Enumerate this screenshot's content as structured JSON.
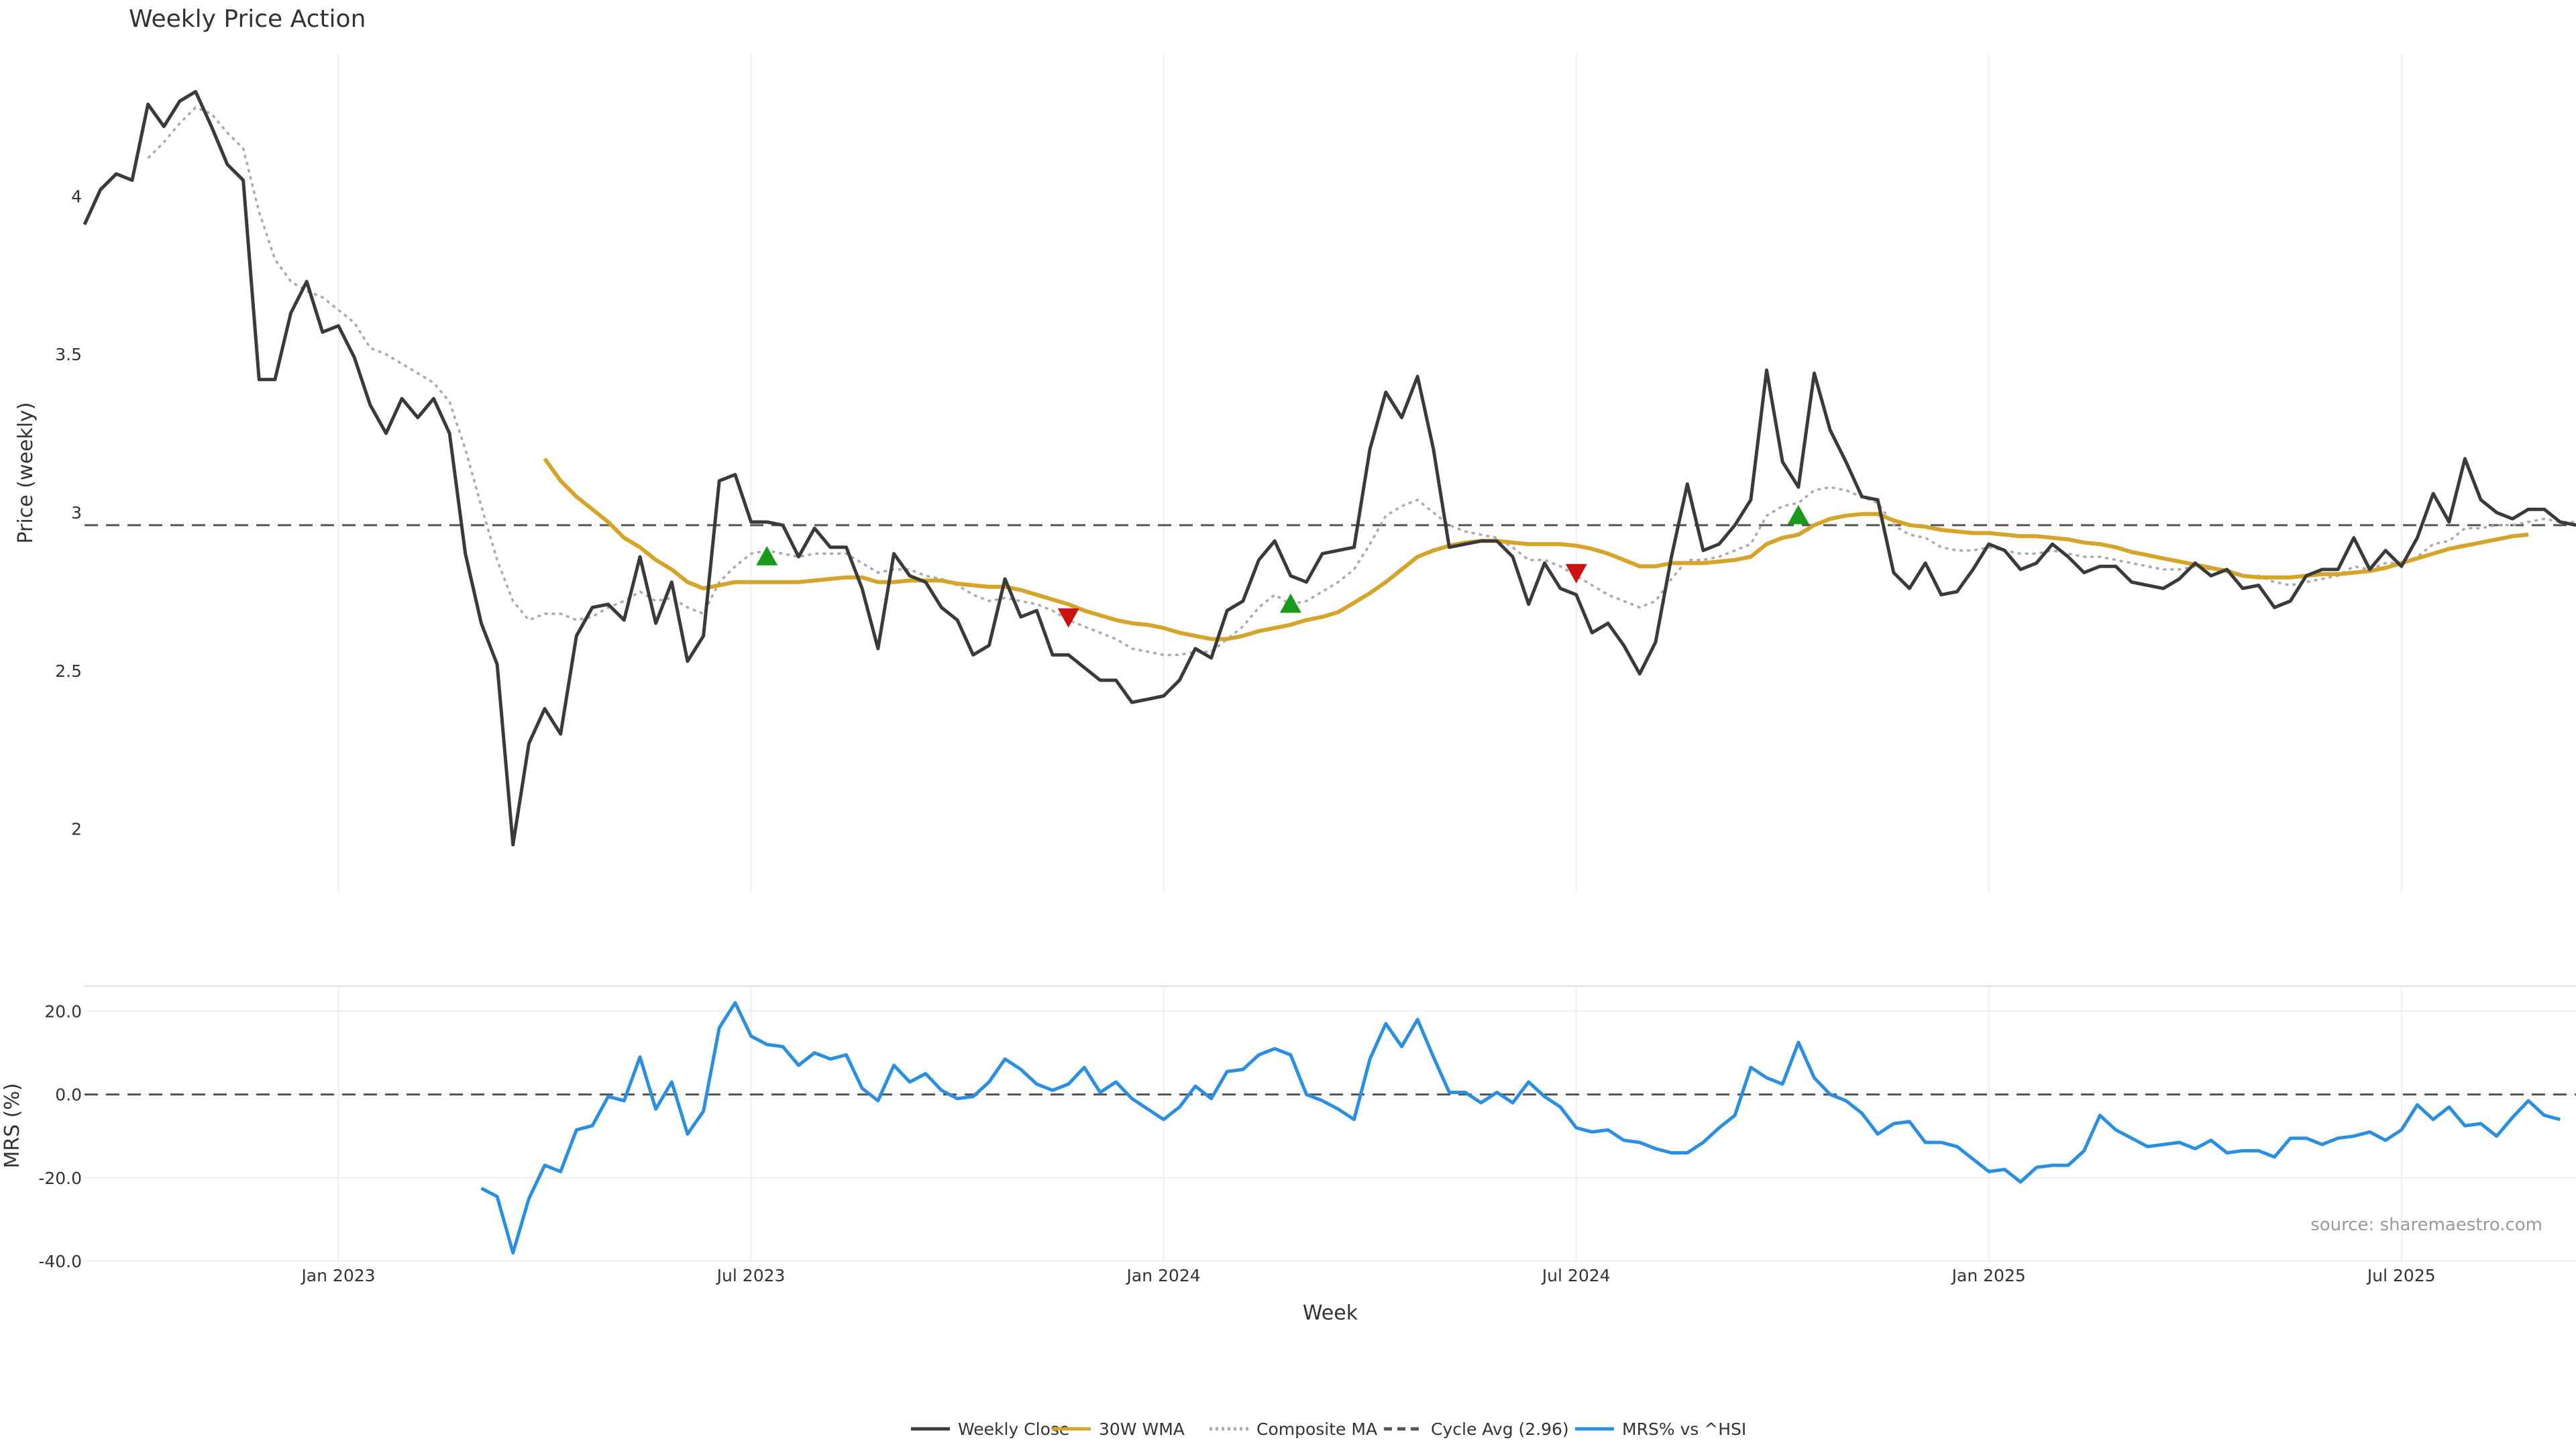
{
  "colors": {
    "close": "#3a3a3a",
    "wma": "#d4a52a",
    "composite": "#aaaaaa",
    "cycle": "#555555",
    "mrs": "#2a8fe0",
    "zero": "#555555",
    "grid": "#eeeeee",
    "buy": "#1a9a1a",
    "sell": "#cc1111"
  },
  "chart_data": [
    {
      "type": "line",
      "title": "Weekly Price Action",
      "ylabel": "Price (weekly)",
      "xlabel": "",
      "start_date": "2022-09-12",
      "ylim": [
        1.8,
        4.45
      ],
      "yticks": [
        2,
        2.5,
        3,
        3.5,
        4
      ],
      "ytick_labels": [
        "2",
        "2.5",
        "3",
        "3.5",
        "4"
      ],
      "cycle_avg": 2.96,
      "series": [
        {
          "name": "Weekly Close",
          "values": [
            3.91,
            4.02,
            4.07,
            4.05,
            4.29,
            4.22,
            4.3,
            4.33,
            4.22,
            4.1,
            4.05,
            3.42,
            3.42,
            3.63,
            3.73,
            3.57,
            3.59,
            3.49,
            3.34,
            3.25,
            3.36,
            3.3,
            3.36,
            3.25,
            2.87,
            2.65,
            2.52,
            1.95,
            2.27,
            2.38,
            2.3,
            2.61,
            2.7,
            2.71,
            2.66,
            2.86,
            2.65,
            2.78,
            2.53,
            2.61,
            3.1,
            3.12,
            2.97,
            2.97,
            2.96,
            2.86,
            2.95,
            2.89,
            2.89,
            2.76,
            2.57,
            2.87,
            2.8,
            2.78,
            2.7,
            2.66,
            2.55,
            2.58,
            2.79,
            2.67,
            2.69,
            2.55,
            2.55,
            2.51,
            2.47,
            2.47,
            2.4,
            2.41,
            2.42,
            2.47,
            2.57,
            2.54,
            2.69,
            2.72,
            2.85,
            2.91,
            2.8,
            2.78,
            2.87,
            2.88,
            2.89,
            3.2,
            3.38,
            3.3,
            3.43,
            3.2,
            2.89,
            2.9,
            2.91,
            2.91,
            2.86,
            2.71,
            2.84,
            2.76,
            2.74,
            2.62,
            2.65,
            2.58,
            2.49,
            2.59,
            2.86,
            3.09,
            2.88,
            2.9,
            2.96,
            3.04,
            3.45,
            3.16,
            3.08,
            3.44,
            3.26,
            3.16,
            3.05,
            3.04,
            2.81,
            2.76,
            2.84,
            2.74,
            2.75,
            2.82,
            2.9,
            2.88,
            2.82,
            2.84,
            2.9,
            2.86,
            2.81,
            2.83,
            2.83,
            2.78,
            2.77,
            2.76,
            2.79,
            2.84,
            2.8,
            2.82,
            2.76,
            2.77,
            2.7,
            2.72,
            2.8,
            2.82,
            2.82,
            2.92,
            2.82,
            2.88,
            2.83,
            2.92,
            3.06,
            2.97,
            3.17,
            3.04,
            3.0,
            2.98,
            3.01,
            3.01,
            2.97,
            2.96
          ]
        },
        {
          "name": "30W WMA",
          "values": [
            null,
            null,
            null,
            null,
            null,
            null,
            null,
            null,
            null,
            null,
            null,
            null,
            null,
            null,
            null,
            null,
            null,
            null,
            null,
            null,
            null,
            null,
            null,
            null,
            null,
            null,
            null,
            null,
            null,
            3.17,
            3.1,
            3.05,
            3.01,
            2.97,
            2.92,
            2.89,
            2.85,
            2.82,
            2.78,
            2.76,
            2.77,
            2.78,
            2.78,
            2.78,
            2.78,
            2.78,
            2.785,
            2.79,
            2.795,
            2.795,
            2.78,
            2.78,
            2.785,
            2.785,
            2.785,
            2.775,
            2.77,
            2.765,
            2.765,
            2.755,
            2.74,
            2.725,
            2.71,
            2.69,
            2.675,
            2.66,
            2.65,
            2.645,
            2.635,
            2.62,
            2.61,
            2.6,
            2.6,
            2.61,
            2.625,
            2.635,
            2.645,
            2.66,
            2.67,
            2.685,
            2.715,
            2.745,
            2.78,
            2.82,
            2.86,
            2.88,
            2.895,
            2.905,
            2.91,
            2.91,
            2.905,
            2.9,
            2.9,
            2.9,
            2.895,
            2.885,
            2.87,
            2.85,
            2.83,
            2.83,
            2.84,
            2.84,
            2.84,
            2.845,
            2.85,
            2.86,
            2.9,
            2.92,
            2.93,
            2.96,
            2.98,
            2.99,
            2.995,
            2.995,
            2.975,
            2.96,
            2.955,
            2.945,
            2.94,
            2.935,
            2.935,
            2.93,
            2.925,
            2.925,
            2.92,
            2.915,
            2.905,
            2.9,
            2.89,
            2.875,
            2.865,
            2.855,
            2.845,
            2.835,
            2.825,
            2.815,
            2.8,
            2.795,
            2.795,
            2.795,
            2.8,
            2.805,
            2.805,
            2.81,
            2.815,
            2.825,
            2.84,
            2.855,
            2.87,
            2.885,
            2.895,
            2.905,
            2.915,
            2.925,
            2.93
          ]
        },
        {
          "name": "Composite MA",
          "values": [
            null,
            null,
            null,
            null,
            4.12,
            4.17,
            4.23,
            4.28,
            4.26,
            4.2,
            4.15,
            3.95,
            3.8,
            3.73,
            3.7,
            3.68,
            3.64,
            3.6,
            3.52,
            3.5,
            3.47,
            3.44,
            3.41,
            3.35,
            3.2,
            3.02,
            2.85,
            2.72,
            2.66,
            2.68,
            2.68,
            2.66,
            2.67,
            2.7,
            2.72,
            2.75,
            2.72,
            2.73,
            2.7,
            2.68,
            2.78,
            2.83,
            2.87,
            2.88,
            2.87,
            2.86,
            2.87,
            2.87,
            2.87,
            2.84,
            2.81,
            2.82,
            2.82,
            2.8,
            2.79,
            2.77,
            2.74,
            2.72,
            2.73,
            2.72,
            2.71,
            2.69,
            2.66,
            2.64,
            2.62,
            2.6,
            2.57,
            2.56,
            2.55,
            2.55,
            2.56,
            2.56,
            2.6,
            2.64,
            2.7,
            2.74,
            2.71,
            2.72,
            2.75,
            2.78,
            2.82,
            2.9,
            2.99,
            3.02,
            3.04,
            3.0,
            2.96,
            2.94,
            2.93,
            2.92,
            2.89,
            2.85,
            2.85,
            2.83,
            2.8,
            2.77,
            2.74,
            2.72,
            2.7,
            2.72,
            2.79,
            2.85,
            2.85,
            2.86,
            2.88,
            2.9,
            2.99,
            3.02,
            3.03,
            3.07,
            3.08,
            3.07,
            3.05,
            3.03,
            2.96,
            2.93,
            2.92,
            2.89,
            2.88,
            2.88,
            2.89,
            2.88,
            2.87,
            2.87,
            2.88,
            2.87,
            2.86,
            2.86,
            2.85,
            2.84,
            2.83,
            2.82,
            2.82,
            2.83,
            2.82,
            2.82,
            2.8,
            2.8,
            2.78,
            2.77,
            2.78,
            2.79,
            2.8,
            2.83,
            2.82,
            2.84,
            2.84,
            2.86,
            2.9,
            2.91,
            2.95,
            2.95,
            2.96,
            2.96,
            2.97,
            2.98,
            2.97,
            2.97
          ]
        }
      ],
      "buy_signals": [
        [
          43,
          2.86
        ],
        [
          76,
          2.71
        ],
        [
          108,
          2.99
        ]
      ],
      "sell_signals": [
        [
          62,
          2.67
        ],
        [
          94,
          2.81
        ]
      ]
    },
    {
      "type": "line",
      "title": "",
      "ylabel": "MRS (%)",
      "xlabel": "Week",
      "ylim": [
        -40,
        26
      ],
      "yticks": [
        -40,
        -20,
        0,
        20
      ],
      "ytick_labels": [
        "-40.0",
        "-20.0",
        "0.0",
        "20.0"
      ],
      "x_tick_weeks": [
        16,
        42,
        68,
        94,
        120,
        146
      ],
      "x_tick_labels": [
        "Jan 2023",
        "Jul 2023",
        "Jan 2024",
        "Jul 2024",
        "Jan 2025",
        "Jul 2025"
      ],
      "series": [
        {
          "name": "MRS% vs ^HSI",
          "values": [
            null,
            null,
            null,
            null,
            null,
            null,
            null,
            null,
            null,
            null,
            null,
            null,
            null,
            null,
            null,
            null,
            null,
            null,
            null,
            null,
            null,
            null,
            null,
            null,
            null,
            -22.5,
            -24.5,
            -38,
            -25,
            -17,
            -18.5,
            -8.5,
            -7.5,
            -0.5,
            -1.5,
            9,
            -3.5,
            3,
            -9.5,
            -4,
            16,
            22,
            14,
            12,
            11.5,
            7,
            10,
            8.5,
            9.5,
            1.5,
            -1.5,
            7,
            3,
            5,
            1,
            -1,
            -0.5,
            3,
            8.5,
            6,
            2.5,
            1,
            2.5,
            6.5,
            0.5,
            3,
            -1,
            -3.5,
            -6,
            -3,
            2,
            -1,
            5.5,
            6,
            9.5,
            11,
            9.5,
            0,
            -1.5,
            -3.5,
            -6,
            8.5,
            17,
            11.5,
            18,
            9,
            0.5,
            0.5,
            -2,
            0.5,
            -2,
            3,
            -0.5,
            -3,
            -8,
            -9,
            -8.5,
            -11,
            -11.5,
            -13,
            -14,
            -14,
            -11.5,
            -8,
            -5,
            6.5,
            4,
            2.5,
            12.5,
            4,
            0,
            -1.5,
            -4.5,
            -9.5,
            -7,
            -6.5,
            -11.5,
            -11.5,
            -12.5,
            -15.5,
            -18.5,
            -18,
            -21,
            -17.5,
            -17,
            -17,
            -13.5,
            -5,
            -8.5,
            -10.5,
            -12.5,
            -12,
            -11.5,
            -13,
            -11,
            -14,
            -13.5,
            -13.5,
            -15,
            -10.5,
            -10.5,
            -12,
            -10.5,
            -10,
            -9,
            -11,
            -8.5,
            -2.5,
            -6,
            -3,
            -7.5,
            -7,
            -10,
            -5.5,
            -1.5,
            -5,
            -6
          ]
        }
      ]
    }
  ],
  "legend": [
    {
      "label": "Weekly Close",
      "style": "solid",
      "color_key": "close"
    },
    {
      "label": "30W WMA",
      "style": "solid",
      "color_key": "wma"
    },
    {
      "label": "Composite MA",
      "style": "dotted",
      "color_key": "composite"
    },
    {
      "label": "Cycle Avg (2.96)",
      "style": "dashed",
      "color_key": "cycle"
    },
    {
      "label": "MRS% vs ^HSI",
      "style": "solid",
      "color_key": "mrs"
    }
  ],
  "source_text": "source: sharemaestro.com"
}
